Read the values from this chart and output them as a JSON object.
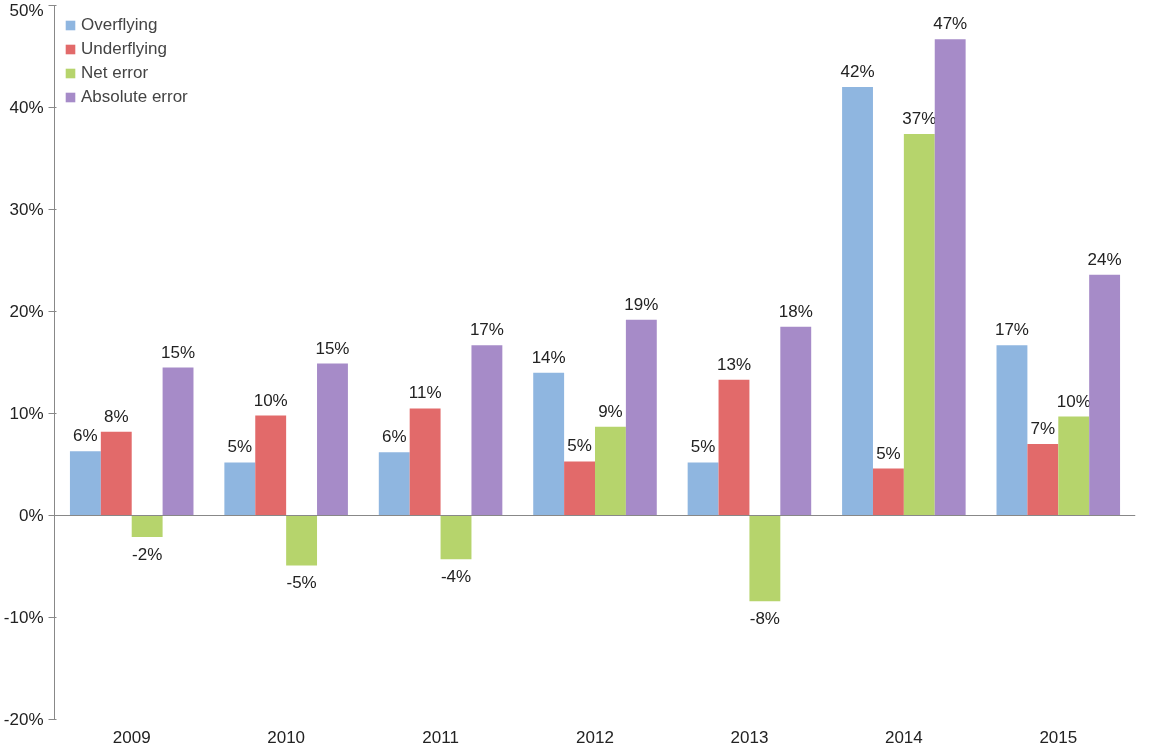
{
  "chart_data": {
    "type": "bar",
    "categories": [
      "2009",
      "2010",
      "2011",
      "2012",
      "2013",
      "2014",
      "2015"
    ],
    "series": [
      {
        "name": "Overflying",
        "color": "#8fb6e0",
        "values": [
          6.3,
          5.2,
          6.2,
          14,
          5.2,
          42,
          16.7
        ],
        "value_labels": [
          "6%",
          "5%",
          "6%",
          "14%",
          "5%",
          "42%",
          "17%"
        ]
      },
      {
        "name": "Underflying",
        "color": "#e26a6a",
        "values": [
          8.2,
          9.8,
          10.5,
          5.3,
          13.3,
          4.6,
          7
        ],
        "value_labels": [
          "8%",
          "10%",
          "11%",
          "5%",
          "13%",
          "5%",
          "7%"
        ]
      },
      {
        "name": "Net error",
        "color": "#b6d46c",
        "values": [
          -2.1,
          -4.9,
          -4.3,
          8.7,
          -8.4,
          37.4,
          9.7
        ],
        "value_labels": [
          "-2%",
          "-5%",
          "-4%",
          "9%",
          "-8%",
          "37%",
          "10%"
        ]
      },
      {
        "name": "Absolute error",
        "color": "#a68bc8",
        "values": [
          14.5,
          14.9,
          16.7,
          19.2,
          18.5,
          46.7,
          23.6
        ],
        "value_labels": [
          "15%",
          "15%",
          "17%",
          "19%",
          "18%",
          "47%",
          "24%"
        ]
      }
    ],
    "ylim": [
      -20,
      50
    ],
    "yticks": [
      {
        "value": -20,
        "label": "-20%"
      },
      {
        "value": -10,
        "label": "-10%"
      },
      {
        "value": 0,
        "label": "0%"
      },
      {
        "value": 10,
        "label": "10%"
      },
      {
        "value": 20,
        "label": "20%"
      },
      {
        "value": 30,
        "label": "30%"
      },
      {
        "value": 40,
        "label": "40%"
      },
      {
        "value": 50,
        "label": "50%"
      }
    ],
    "ref_lines": [
      {
        "axis": "y",
        "value": 0,
        "color": "#888888"
      }
    ],
    "legend": "top left"
  }
}
